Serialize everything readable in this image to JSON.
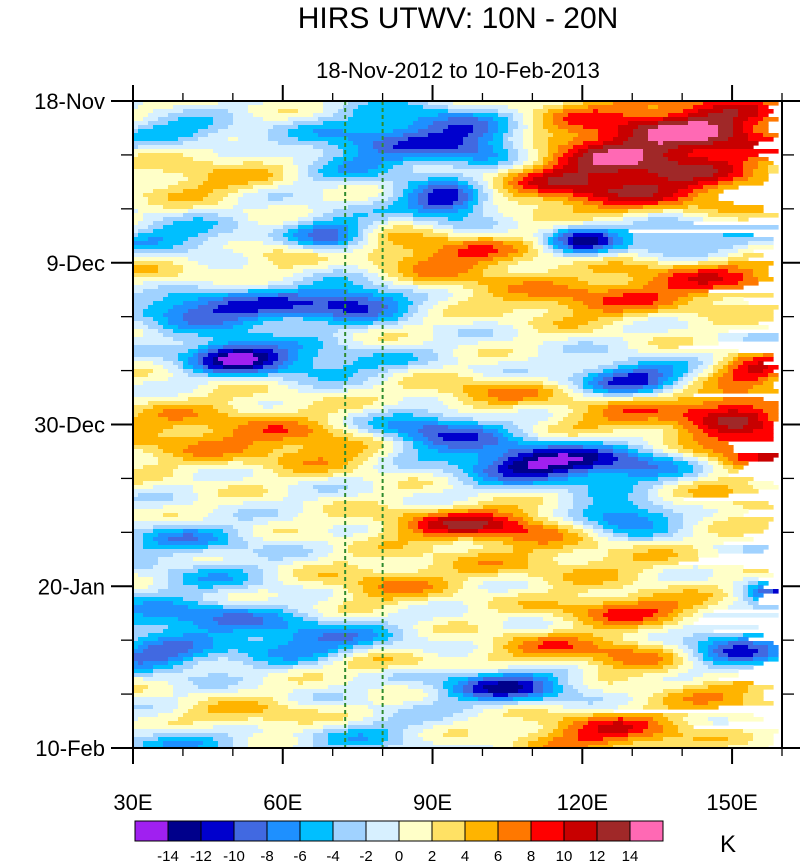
{
  "chart_data": {
    "type": "heatmap",
    "title": "HIRS UTWV: 10N - 20N",
    "subtitle": "18-Nov-2012 to 10-Feb-2013",
    "xlabel": "",
    "ylabel": "",
    "x_range": [
      30,
      160
    ],
    "x_ticks": [
      30,
      60,
      90,
      120,
      150
    ],
    "x_tick_labels": [
      "30E",
      "60E",
      "90E",
      "120E",
      "150E"
    ],
    "y_range_days": [
      0,
      84
    ],
    "y_ticks_days": [
      0,
      21,
      42,
      63,
      84
    ],
    "y_tick_labels": [
      "18-Nov",
      "9-Dec",
      "30-Dec",
      "20-Jan",
      "10-Feb"
    ],
    "y_minor_step_days": 7,
    "x_minor_step": 10,
    "reference_lines_lon": [
      72.5,
      80
    ],
    "reference_line_color": "#2e8b2e",
    "colorbar": {
      "levels": [
        -14,
        -12,
        -10,
        -8,
        -6,
        -4,
        -2,
        0,
        2,
        4,
        6,
        8,
        10,
        12,
        14
      ],
      "level_labels": [
        "-14",
        "-12",
        "-10",
        "-8",
        "-6",
        "-4",
        "-2",
        "0",
        "2",
        "4",
        "6",
        "8",
        "10",
        "12",
        "14"
      ],
      "colors": [
        "#a020f0",
        "#00008b",
        "#0000cd",
        "#4169e1",
        "#1e90ff",
        "#00bfff",
        "#a0d2ff",
        "#d7f0ff",
        "#ffffc8",
        "#ffe164",
        "#ffb400",
        "#ff7800",
        "#ff0000",
        "#c80000",
        "#a02828",
        "#ff69b4"
      ],
      "units": "K"
    },
    "features": [
      {
        "lon": 130,
        "day": 5,
        "amp": 11,
        "sx": 16,
        "sy": 4.0
      },
      {
        "lon": 150,
        "day": 3,
        "amp": 8,
        "sx": 10,
        "sy": 3.0
      },
      {
        "lon": 118,
        "day": 11,
        "amp": 7,
        "sx": 12,
        "sy": 2.5
      },
      {
        "lon": 140,
        "day": 11,
        "amp": 6,
        "sx": 14,
        "sy": 3.0
      },
      {
        "lon": 100,
        "day": 6,
        "amp": -9,
        "sx": 8,
        "sy": 2.0
      },
      {
        "lon": 90,
        "day": 3,
        "amp": -7,
        "sx": 12,
        "sy": 2.0
      },
      {
        "lon": 93,
        "day": 13,
        "amp": -13,
        "sx": 6,
        "sy": 1.6
      },
      {
        "lon": 75,
        "day": 7,
        "amp": -7,
        "sx": 12,
        "sy": 2.5
      },
      {
        "lon": 40,
        "day": 4,
        "amp": -6,
        "sx": 8,
        "sy": 1.2
      },
      {
        "lon": 55,
        "day": 8,
        "amp": 4,
        "sx": 12,
        "sy": 1.6
      },
      {
        "lon": 42,
        "day": 11,
        "amp": 4,
        "sx": 10,
        "sy": 1.5
      },
      {
        "lon": 40,
        "day": 18,
        "amp": -6,
        "sx": 10,
        "sy": 1.6
      },
      {
        "lon": 70,
        "day": 18,
        "amp": -10,
        "sx": 6,
        "sy": 2.0
      },
      {
        "lon": 120,
        "day": 18,
        "amp": -11,
        "sx": 5,
        "sy": 1.5
      },
      {
        "lon": 140,
        "day": 18,
        "amp": -7,
        "sx": 10,
        "sy": 2.0
      },
      {
        "lon": 85,
        "day": 19,
        "amp": 5,
        "sx": 12,
        "sy": 1.5
      },
      {
        "lon": 60,
        "day": 20,
        "amp": 4,
        "sx": 12,
        "sy": 1.5
      },
      {
        "lon": 100,
        "day": 20,
        "amp": 4,
        "sx": 10,
        "sy": 1.5
      },
      {
        "lon": 95,
        "day": 23,
        "amp": 4,
        "sx": 10,
        "sy": 2.0
      },
      {
        "lon": 145,
        "day": 23,
        "amp": 8,
        "sx": 15,
        "sy": 2.5
      },
      {
        "lon": 120,
        "day": 26,
        "amp": 6,
        "sx": 12,
        "sy": 2.0
      },
      {
        "lon": 75,
        "day": 26,
        "amp": -10,
        "sx": 8,
        "sy": 1.5
      },
      {
        "lon": 55,
        "day": 27,
        "amp": -8,
        "sx": 12,
        "sy": 2.0
      },
      {
        "lon": 40,
        "day": 27,
        "amp": -6,
        "sx": 8,
        "sy": 1.5
      },
      {
        "lon": 35,
        "day": 23,
        "amp": 3,
        "sx": 8,
        "sy": 1.5
      },
      {
        "lon": 50,
        "day": 33,
        "amp": -12,
        "sx": 7,
        "sy": 1.5
      },
      {
        "lon": 65,
        "day": 34,
        "amp": -6,
        "sx": 14,
        "sy": 1.5
      },
      {
        "lon": 130,
        "day": 36,
        "amp": -11,
        "sx": 8,
        "sy": 1.5
      },
      {
        "lon": 155,
        "day": 35,
        "amp": 10,
        "sx": 6,
        "sy": 1.5
      },
      {
        "lon": 150,
        "day": 40,
        "amp": 9,
        "sx": 8,
        "sy": 2.0
      },
      {
        "lon": 100,
        "day": 38,
        "amp": 6,
        "sx": 10,
        "sy": 1.5
      },
      {
        "lon": 130,
        "day": 41,
        "amp": 6,
        "sx": 12,
        "sy": 2.0
      },
      {
        "lon": 45,
        "day": 43,
        "amp": 6,
        "sx": 18,
        "sy": 3.0
      },
      {
        "lon": 70,
        "day": 45,
        "amp": 5,
        "sx": 10,
        "sy": 2.0
      },
      {
        "lon": 90,
        "day": 43,
        "amp": -10,
        "sx": 10,
        "sy": 2.0
      },
      {
        "lon": 110,
        "day": 47,
        "amp": -13,
        "sx": 10,
        "sy": 1.8
      },
      {
        "lon": 130,
        "day": 47,
        "amp": -8,
        "sx": 10,
        "sy": 2.0
      },
      {
        "lon": 155,
        "day": 45,
        "amp": 11,
        "sx": 10,
        "sy": 2.0
      },
      {
        "lon": 100,
        "day": 55,
        "amp": 11,
        "sx": 14,
        "sy": 1.6
      },
      {
        "lon": 128,
        "day": 54,
        "amp": -11,
        "sx": 8,
        "sy": 1.5
      },
      {
        "lon": 150,
        "day": 52,
        "amp": 4,
        "sx": 12,
        "sy": 2.0
      },
      {
        "lon": 40,
        "day": 57,
        "amp": -6,
        "sx": 10,
        "sy": 1.5
      },
      {
        "lon": 115,
        "day": 60,
        "amp": 4,
        "sx": 20,
        "sy": 2.0
      },
      {
        "lon": 80,
        "day": 63,
        "amp": 5,
        "sx": 10,
        "sy": 2.0
      },
      {
        "lon": 45,
        "day": 62,
        "amp": -4,
        "sx": 10,
        "sy": 1.5
      },
      {
        "lon": 130,
        "day": 66,
        "amp": 8,
        "sx": 12,
        "sy": 1.5
      },
      {
        "lon": 158,
        "day": 64,
        "amp": -8,
        "sx": 4,
        "sy": 1.5
      },
      {
        "lon": 40,
        "day": 67,
        "amp": -8,
        "sx": 12,
        "sy": 1.5
      },
      {
        "lon": 65,
        "day": 70,
        "amp": -8,
        "sx": 12,
        "sy": 2.0
      },
      {
        "lon": 35,
        "day": 72,
        "amp": -9,
        "sx": 8,
        "sy": 1.5
      },
      {
        "lon": 150,
        "day": 71,
        "amp": -10,
        "sx": 8,
        "sy": 2.0
      },
      {
        "lon": 130,
        "day": 72,
        "amp": 6,
        "sx": 10,
        "sy": 2.0
      },
      {
        "lon": 110,
        "day": 71,
        "amp": 5,
        "sx": 10,
        "sy": 1.5
      },
      {
        "lon": 80,
        "day": 73,
        "amp": 5,
        "sx": 8,
        "sy": 1.0
      },
      {
        "lon": 105,
        "day": 76,
        "amp": -11,
        "sx": 10,
        "sy": 1.6
      },
      {
        "lon": 150,
        "day": 77,
        "amp": 5,
        "sx": 10,
        "sy": 2.0
      },
      {
        "lon": 55,
        "day": 80,
        "amp": 5,
        "sx": 12,
        "sy": 1.5
      },
      {
        "lon": 125,
        "day": 82,
        "amp": 9,
        "sx": 12,
        "sy": 2.0
      },
      {
        "lon": 75,
        "day": 82,
        "amp": -4,
        "sx": 10,
        "sy": 2.0
      },
      {
        "lon": 40,
        "day": 83,
        "amp": -5,
        "sx": 10,
        "sy": 1.5
      }
    ]
  }
}
